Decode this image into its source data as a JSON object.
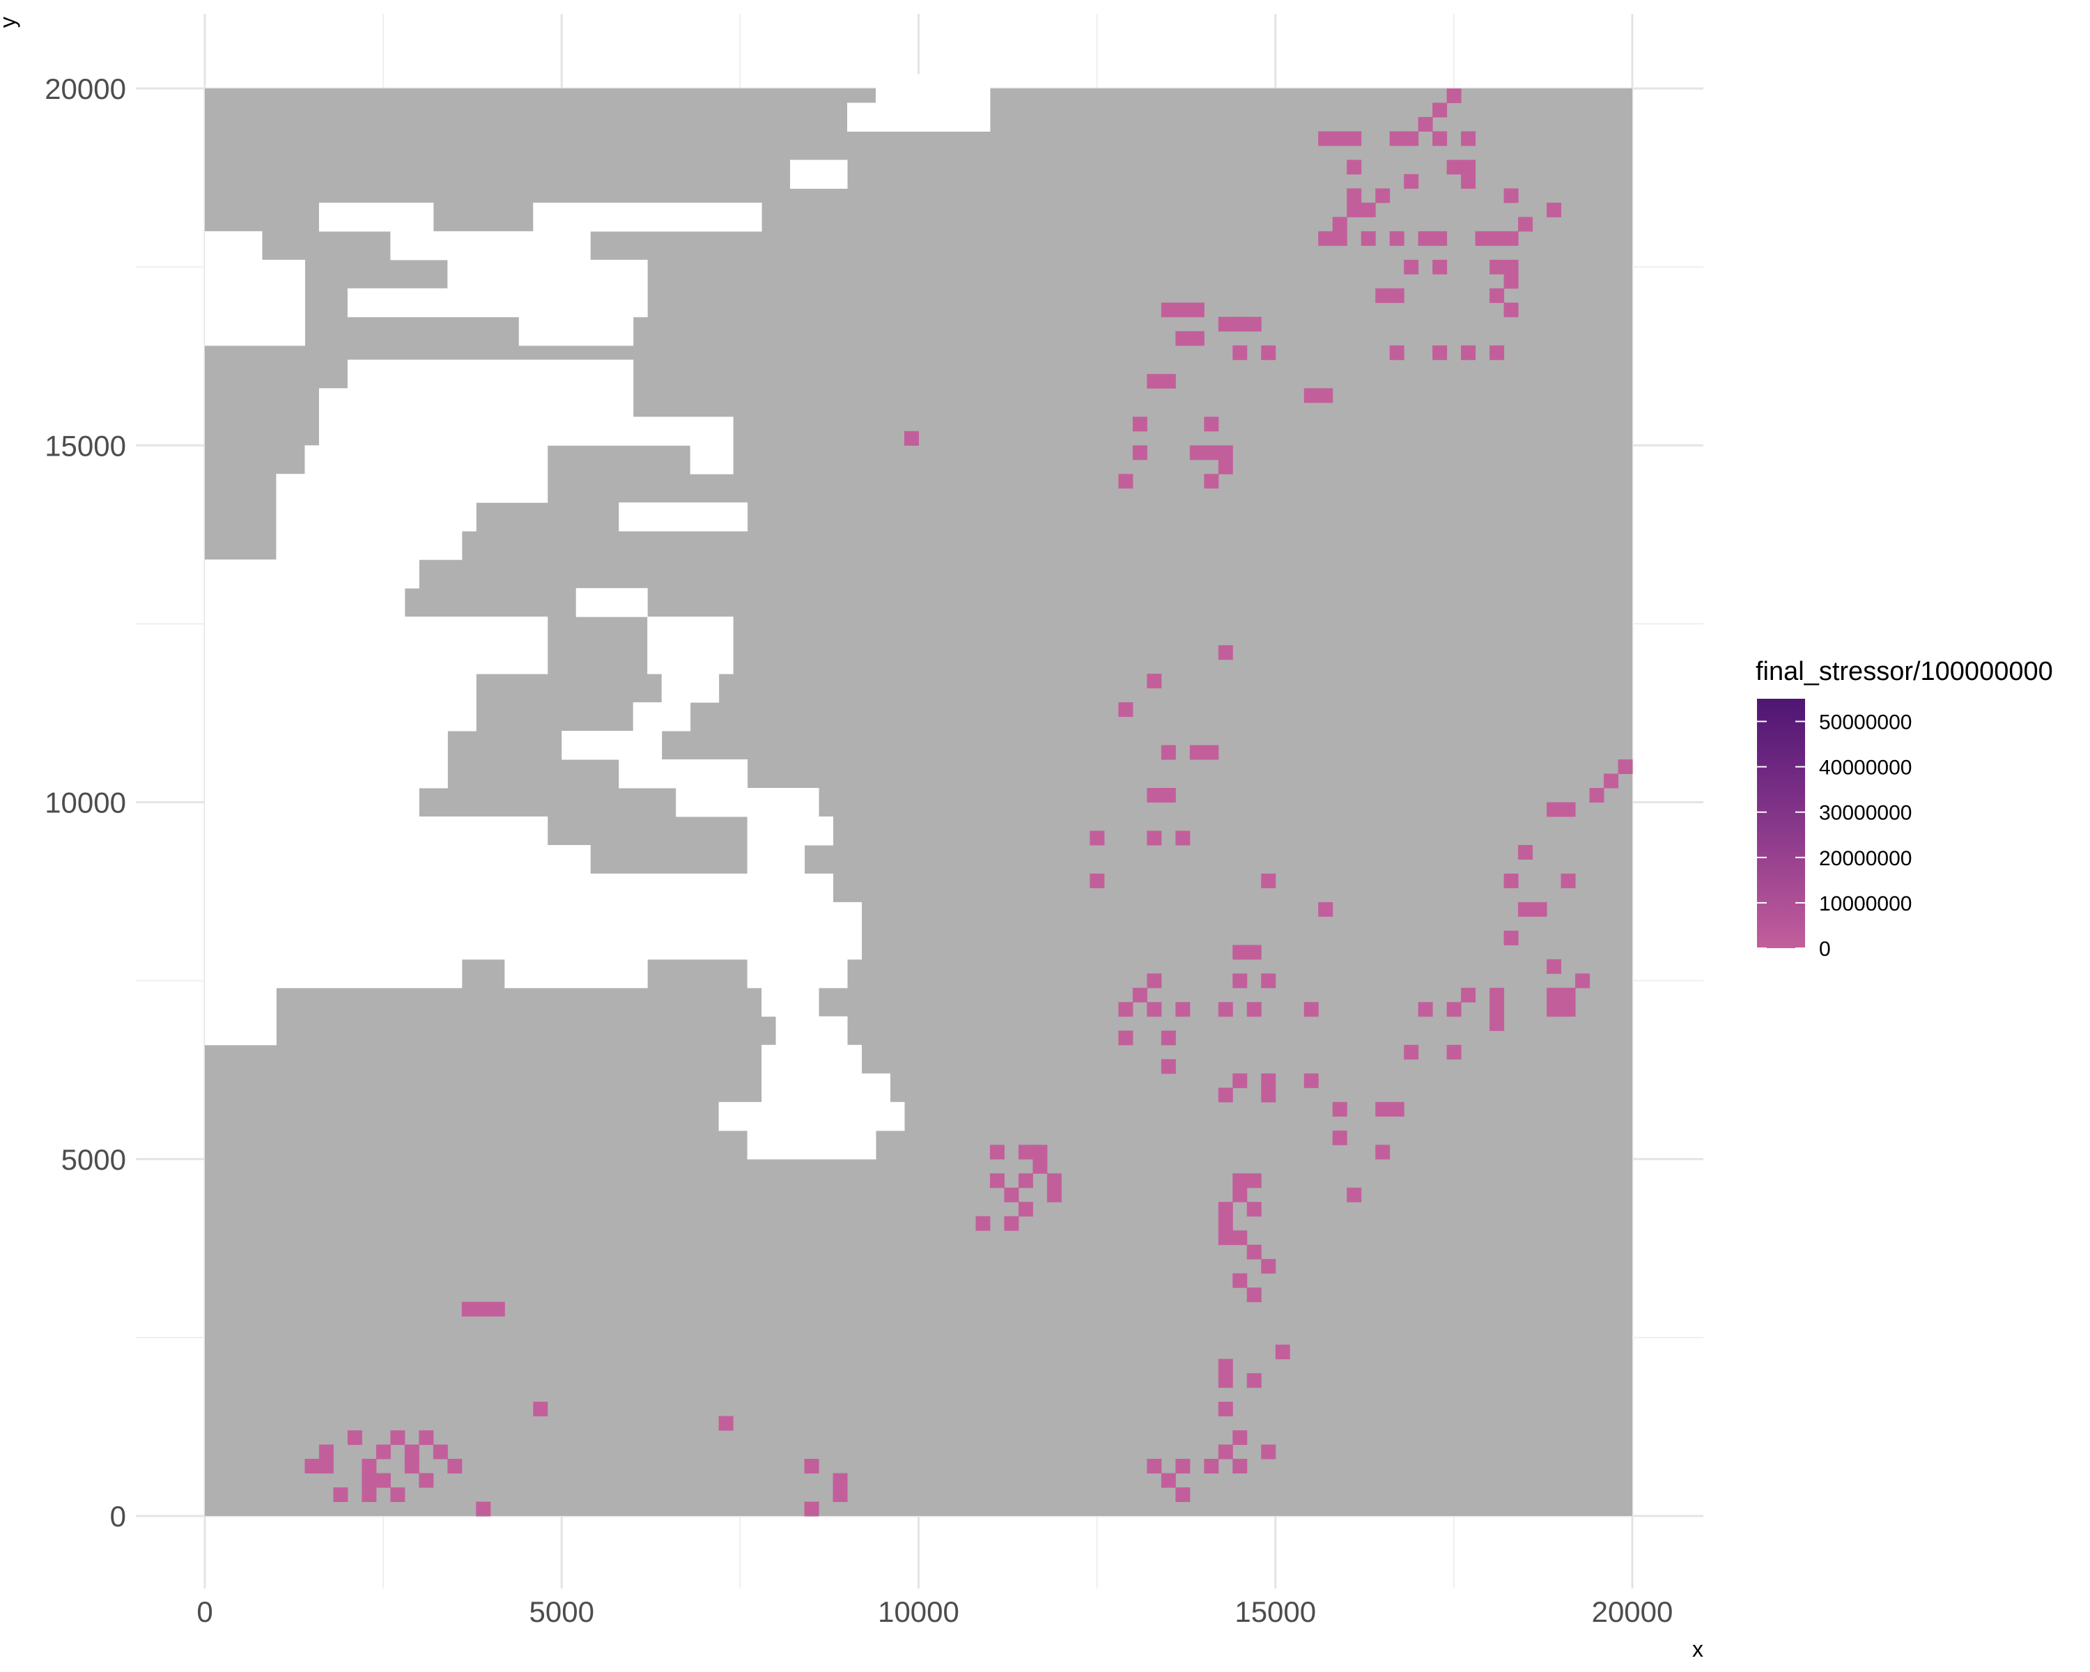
{
  "chart_data": {
    "type": "heatmap",
    "title": "",
    "xlabel": "x",
    "ylabel": "y",
    "xlim": [
      -1000,
      21000
    ],
    "ylim": [
      -1000,
      20400
    ],
    "x_ticks": [
      0,
      5000,
      10000,
      15000,
      20000
    ],
    "x_tick_labels": [
      "0",
      "5000",
      "10000",
      "15000",
      "20000"
    ],
    "y_ticks": [
      0,
      5000,
      10000,
      15000,
      20000
    ],
    "y_tick_labels": [
      "0",
      "5000",
      "10000",
      "15000",
      "20000"
    ],
    "grid": true,
    "cell_size": 200,
    "raster_extent": {
      "x": [
        0,
        20000
      ],
      "y": [
        0,
        20000
      ]
    },
    "na_color": "#b0b0b0",
    "no_data_color": "#ffffff",
    "legend": {
      "title": "final_stressor/100000000",
      "placement": "right",
      "type": "colorbar",
      "breaks": [
        50000000,
        40000000,
        30000000,
        20000000,
        10000000,
        0
      ],
      "break_labels": [
        "50000000",
        "40000000",
        "30000000",
        "20000000",
        "10000000",
        "0"
      ],
      "limits": [
        0,
        55000000
      ],
      "gradient": [
        "#c25f9b",
        "#a64a93",
        "#87378a",
        "#6b267f",
        "#4e1673"
      ]
    },
    "white_background_rows": [
      {
        "y": 19800,
        "x_ranges": [
          [
            10000,
            11000
          ],
          [
            9400,
            10000
          ]
        ]
      },
      {
        "y": 19400,
        "x_ranges": [
          [
            9000,
            11000
          ]
        ]
      },
      {
        "y": 18600,
        "x_ranges": [
          [
            8200,
            9000
          ]
        ]
      },
      {
        "y": 18000,
        "x_ranges": [
          [
            4600,
            7800
          ],
          [
            1600,
            3200
          ]
        ]
      },
      {
        "y": 17600,
        "x_ranges": [
          [
            2600,
            5400
          ],
          [
            0,
            800
          ]
        ]
      },
      {
        "y": 17200,
        "x_ranges": [
          [
            3400,
            6200
          ],
          [
            0,
            1400
          ]
        ]
      },
      {
        "y": 16800,
        "x_ranges": [
          [
            2000,
            6200
          ],
          [
            0,
            1400
          ]
        ]
      },
      {
        "y": 16400,
        "x_ranges": [
          [
            0,
            1400
          ],
          [
            4400,
            6000
          ]
        ]
      },
      {
        "y": 15800,
        "x_ranges": [
          [
            2000,
            6000
          ]
        ]
      },
      {
        "y": 15400,
        "x_ranges": [
          [
            1600,
            6000
          ]
        ]
      },
      {
        "y": 15000,
        "x_ranges": [
          [
            1600,
            7400
          ]
        ]
      },
      {
        "y": 14600,
        "x_ranges": [
          [
            1400,
            4800
          ],
          [
            6800,
            7400
          ]
        ]
      },
      {
        "y": 14200,
        "x_ranges": [
          [
            1000,
            4800
          ]
        ]
      },
      {
        "y": 13800,
        "x_ranges": [
          [
            1000,
            3800
          ],
          [
            5800,
            7600
          ]
        ]
      },
      {
        "y": 13400,
        "x_ranges": [
          [
            1000,
            3600
          ]
        ]
      },
      {
        "y": 13000,
        "x_ranges": [
          [
            0,
            3000
          ]
        ]
      },
      {
        "y": 12600,
        "x_ranges": [
          [
            0,
            2800
          ],
          [
            5200,
            6200
          ]
        ]
      },
      {
        "y": 12200,
        "x_ranges": [
          [
            0,
            4800
          ],
          [
            6200,
            7400
          ]
        ]
      },
      {
        "y": 11800,
        "x_ranges": [
          [
            0,
            4800
          ],
          [
            6200,
            7400
          ]
        ]
      },
      {
        "y": 11400,
        "x_ranges": [
          [
            0,
            3800
          ],
          [
            6400,
            7200
          ]
        ]
      },
      {
        "y": 11000,
        "x_ranges": [
          [
            0,
            3800
          ],
          [
            6000,
            6800
          ]
        ]
      },
      {
        "y": 10600,
        "x_ranges": [
          [
            0,
            3400
          ],
          [
            5000,
            6400
          ]
        ]
      },
      {
        "y": 10200,
        "x_ranges": [
          [
            0,
            3400
          ],
          [
            5800,
            7600
          ]
        ]
      },
      {
        "y": 9800,
        "x_ranges": [
          [
            0,
            3000
          ],
          [
            6600,
            8600
          ]
        ]
      },
      {
        "y": 9400,
        "x_ranges": [
          [
            0,
            4800
          ],
          [
            7600,
            8800
          ]
        ]
      },
      {
        "y": 9000,
        "x_ranges": [
          [
            0,
            5400
          ],
          [
            7600,
            8400
          ]
        ]
      },
      {
        "y": 8600,
        "x_ranges": [
          [
            0,
            8800
          ]
        ]
      },
      {
        "y": 8200,
        "x_ranges": [
          [
            0,
            9200
          ]
        ]
      },
      {
        "y": 7800,
        "x_ranges": [
          [
            0,
            9200
          ]
        ]
      },
      {
        "y": 7400,
        "x_ranges": [
          [
            0,
            3600
          ],
          [
            4200,
            6200
          ],
          [
            7600,
            9000
          ]
        ]
      },
      {
        "y": 7000,
        "x_ranges": [
          [
            0,
            1000
          ],
          [
            7800,
            8600
          ]
        ]
      },
      {
        "y": 6600,
        "x_ranges": [
          [
            0,
            1000
          ],
          [
            8000,
            9000
          ]
        ]
      },
      {
        "y": 6200,
        "x_ranges": [
          [
            7800,
            9200
          ]
        ]
      },
      {
        "y": 5800,
        "x_ranges": [
          [
            7800,
            9600
          ]
        ]
      },
      {
        "y": 5400,
        "x_ranges": [
          [
            7200,
            9800
          ]
        ]
      },
      {
        "y": 5000,
        "x_ranges": [
          [
            7600,
            9400
          ]
        ]
      }
    ],
    "stressor_cells": [
      [
        17400,
        19800
      ],
      [
        17200,
        19600
      ],
      [
        17000,
        19400
      ],
      [
        16800,
        19200
      ],
      [
        16600,
        19200
      ],
      [
        17200,
        19200
      ],
      [
        17600,
        19200
      ],
      [
        15600,
        19200
      ],
      [
        15800,
        19200
      ],
      [
        16000,
        19200
      ],
      [
        16000,
        18800
      ],
      [
        17600,
        18800
      ],
      [
        16800,
        18600
      ],
      [
        16400,
        18400
      ],
      [
        16000,
        18400
      ],
      [
        18200,
        18400
      ],
      [
        18800,
        18200
      ],
      [
        15800,
        18000
      ],
      [
        15800,
        17800
      ],
      [
        15600,
        17800
      ],
      [
        16200,
        17800
      ],
      [
        16600,
        17800
      ],
      [
        17000,
        17800
      ],
      [
        17200,
        17800
      ],
      [
        17800,
        17800
      ],
      [
        18000,
        17800
      ],
      [
        18200,
        17800
      ],
      [
        16800,
        17400
      ],
      [
        17200,
        17400
      ],
      [
        18000,
        17400
      ],
      [
        18200,
        17400
      ],
      [
        16400,
        17000
      ],
      [
        16600,
        17000
      ],
      [
        18200,
        16800
      ],
      [
        14200,
        16600
      ],
      [
        13600,
        16400
      ],
      [
        13800,
        16400
      ],
      [
        14400,
        16200
      ],
      [
        16600,
        16200
      ],
      [
        17200,
        16200
      ],
      [
        17600,
        16200
      ],
      [
        18000,
        16200
      ],
      [
        13200,
        15800
      ],
      [
        13400,
        15800
      ],
      [
        15400,
        15600
      ],
      [
        15600,
        15600
      ],
      [
        13000,
        15200
      ],
      [
        14000,
        15200
      ],
      [
        13000,
        14800
      ],
      [
        13800,
        14800
      ],
      [
        14000,
        14800
      ],
      [
        14200,
        14800
      ],
      [
        12800,
        14400
      ],
      [
        14200,
        12000
      ],
      [
        13200,
        11600
      ],
      [
        12800,
        11200
      ],
      [
        13400,
        10600
      ],
      [
        13800,
        10600
      ],
      [
        14000,
        10600
      ],
      [
        13200,
        10000
      ],
      [
        13400,
        10000
      ],
      [
        12400,
        9400
      ],
      [
        13200,
        9400
      ],
      [
        13600,
        9400
      ],
      [
        12400,
        8800
      ],
      [
        14800,
        8800
      ],
      [
        15600,
        8400
      ],
      [
        18400,
        8400
      ],
      [
        18600,
        8400
      ],
      [
        18200,
        8000
      ],
      [
        18800,
        7600
      ],
      [
        19200,
        7400
      ],
      [
        14400,
        7400
      ],
      [
        14800,
        7400
      ],
      [
        12800,
        7000
      ],
      [
        13200,
        7000
      ],
      [
        13600,
        7000
      ],
      [
        14200,
        7000
      ],
      [
        14600,
        7000
      ],
      [
        15400,
        7000
      ],
      [
        17000,
        7000
      ],
      [
        17400,
        7000
      ],
      [
        18000,
        7000
      ],
      [
        18800,
        7000
      ],
      [
        19000,
        7000
      ],
      [
        12800,
        6600
      ],
      [
        13400,
        6600
      ],
      [
        16800,
        6400
      ],
      [
        17400,
        6400
      ],
      [
        13400,
        6200
      ],
      [
        14400,
        6000
      ],
      [
        14800,
        6000
      ],
      [
        15400,
        6000
      ],
      [
        14200,
        5800
      ],
      [
        14800,
        5800
      ],
      [
        15800,
        5600
      ],
      [
        16400,
        5600
      ],
      [
        16600,
        5600
      ],
      [
        15800,
        5200
      ],
      [
        16400,
        5000
      ],
      [
        11000,
        5000
      ],
      [
        11400,
        5000
      ],
      [
        11600,
        5000
      ],
      [
        11000,
        4600
      ],
      [
        11400,
        4600
      ],
      [
        11800,
        4600
      ],
      [
        14400,
        4600
      ],
      [
        14600,
        4600
      ],
      [
        16000,
        4400
      ],
      [
        11400,
        4200
      ],
      [
        14200,
        4200
      ],
      [
        14600,
        4200
      ],
      [
        10800,
        4000
      ],
      [
        11200,
        4000
      ],
      [
        14200,
        3800
      ],
      [
        14400,
        3800
      ],
      [
        14600,
        3600
      ],
      [
        14800,
        3400
      ],
      [
        14400,
        3200
      ],
      [
        14600,
        3000
      ],
      [
        3600,
        2800
      ],
      [
        3800,
        2800
      ],
      [
        4000,
        2800
      ],
      [
        15000,
        2200
      ],
      [
        14200,
        2000
      ],
      [
        14600,
        1800
      ],
      [
        14200,
        1800
      ],
      [
        4600,
        1400
      ],
      [
        14200,
        1400
      ],
      [
        7200,
        1200
      ],
      [
        2000,
        1000
      ],
      [
        2600,
        1000
      ],
      [
        3000,
        1000
      ],
      [
        14400,
        1000
      ],
      [
        1600,
        800
      ],
      [
        2400,
        800
      ],
      [
        2800,
        800
      ],
      [
        3200,
        800
      ],
      [
        14200,
        800
      ],
      [
        14800,
        800
      ],
      [
        1400,
        600
      ],
      [
        1600,
        600
      ],
      [
        2200,
        600
      ],
      [
        2800,
        600
      ],
      [
        3400,
        600
      ],
      [
        8400,
        600
      ],
      [
        13200,
        600
      ],
      [
        13600,
        600
      ],
      [
        14000,
        600
      ],
      [
        14400,
        600
      ],
      [
        2200,
        400
      ],
      [
        2400,
        400
      ],
      [
        3000,
        400
      ],
      [
        8800,
        400
      ],
      [
        13400,
        400
      ],
      [
        1800,
        200
      ],
      [
        2200,
        200
      ],
      [
        2600,
        200
      ],
      [
        8800,
        200
      ],
      [
        13600,
        200
      ],
      [
        3800,
        0
      ],
      [
        8400,
        0
      ],
      [
        9800,
        15000
      ],
      [
        19600,
        10200
      ],
      [
        19800,
        10400
      ],
      [
        19400,
        10000
      ],
      [
        19000,
        9800
      ],
      [
        18800,
        9800
      ],
      [
        18400,
        9200
      ],
      [
        18200,
        8800
      ],
      [
        19000,
        8800
      ],
      [
        18000,
        7200
      ],
      [
        17600,
        7200
      ],
      [
        18000,
        6800
      ],
      [
        18800,
        7200
      ],
      [
        19000,
        7200
      ],
      [
        13000,
        7200
      ],
      [
        13200,
        7400
      ],
      [
        14600,
        7800
      ],
      [
        14400,
        7800
      ],
      [
        16000,
        18200
      ],
      [
        16200,
        18200
      ],
      [
        17400,
        18800
      ],
      [
        17600,
        18600
      ],
      [
        18400,
        18000
      ],
      [
        18000,
        17000
      ],
      [
        18200,
        17200
      ],
      [
        13400,
        16800
      ],
      [
        13600,
        16800
      ],
      [
        13800,
        16800
      ],
      [
        14400,
        16600
      ],
      [
        14600,
        16600
      ],
      [
        14800,
        16200
      ],
      [
        14200,
        14600
      ],
      [
        14000,
        14400
      ],
      [
        11600,
        4800
      ],
      [
        11800,
        4400
      ],
      [
        11200,
        4400
      ],
      [
        14400,
        4400
      ],
      [
        14200,
        4000
      ]
    ]
  }
}
